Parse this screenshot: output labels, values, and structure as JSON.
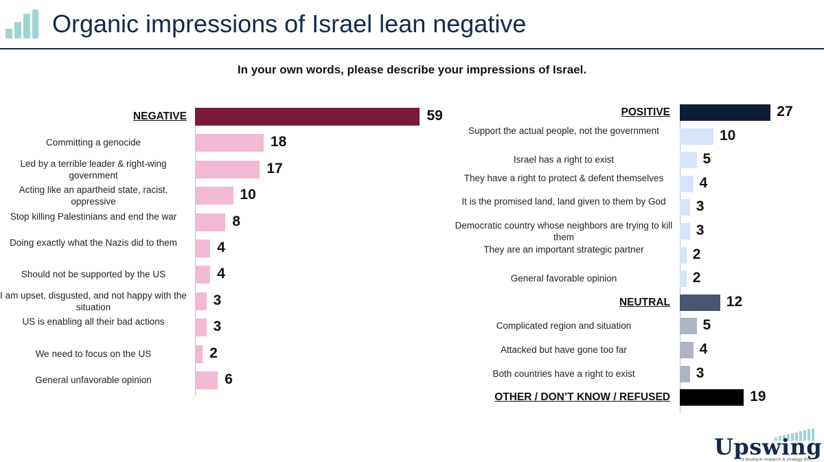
{
  "page": {
    "title": "Organic impressions of Israel lean negative",
    "logo_icon": "bar-chart-logo-icon"
  },
  "brand": {
    "name": "Upswing",
    "tagline": "a boutique research & strategy firm"
  },
  "chart_data": [
    {
      "type": "bar",
      "orientation": "horizontal",
      "title": "In your own words, please describe your impressions of Israel.",
      "panel": "left",
      "categories": [
        "NEGATIVE",
        "Committing a genocide",
        "Led by a terrible leader & right-wing government",
        "Acting like an apartheid state, racist, oppressive",
        "Stop killing Palestinians and end the war",
        "Doing exactly what the Nazis did to them",
        "Should not be supported by the US",
        "I am upset, disgusted, and not happy with the situation",
        "US is enabling all their bad actions",
        "We need to focus on the US",
        "General unfavorable opinion"
      ],
      "values": [
        59,
        18,
        17,
        10,
        8,
        4,
        4,
        3,
        3,
        2,
        6
      ],
      "category_headers": [
        "NEGATIVE"
      ],
      "colors": {
        "header": "#7a1a3a",
        "item": "#f1b9d3"
      }
    },
    {
      "type": "bar",
      "orientation": "horizontal",
      "panel": "right",
      "categories": [
        "POSITIVE",
        "Support the actual people, not the government",
        "Israel has a right to exist",
        "They have a right to protect & defent themselves",
        "It is the promised land, land given to them by God",
        "Democratic country whose neighbors are trying to kill them",
        "They are an important strategic partner",
        "General favorable opinion",
        "NEUTRAL",
        "Complicated region and situation",
        "Attacked but have gone too far",
        "Both countries have a right to exist",
        "OTHER / DON’T KNOW / REFUSED"
      ],
      "values": [
        27,
        10,
        5,
        4,
        3,
        3,
        2,
        2,
        12,
        5,
        4,
        3,
        19
      ],
      "category_headers": [
        "POSITIVE",
        "NEUTRAL",
        "OTHER / DON’T KNOW / REFUSED"
      ],
      "colors": {
        "positive_header": "#0f1d3a",
        "positive_item": "#d6e3fa",
        "neutral_header": "#4a5570",
        "neutral_item": "#aeb4c4",
        "other_header": "#000000"
      }
    }
  ]
}
